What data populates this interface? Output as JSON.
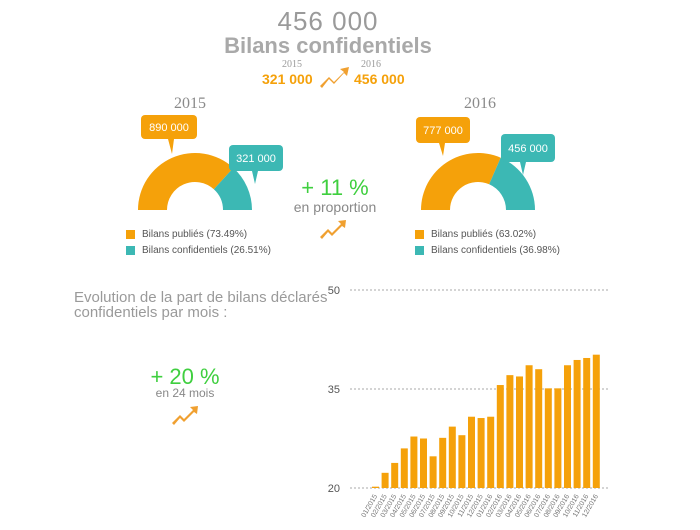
{
  "header": {
    "number": "456 000",
    "subtitle": "Bilans confidentiels",
    "year_from": "2015",
    "value_from": "321 000",
    "year_to": "2016",
    "value_to": "456 000"
  },
  "donuts": [
    {
      "year": "2015",
      "published_label": "890 000",
      "confidential_label": "321 000",
      "legend_published": "Bilans publiés (73.49%)",
      "legend_confidential": "Bilans confidentiels (26.51%)",
      "published_pct": 73.49,
      "confidential_pct": 26.51
    },
    {
      "year": "2016",
      "published_label": "777 000",
      "confidential_label": "456 000",
      "legend_published": "Bilans publiés (63.02%)",
      "legend_confidential": "Bilans confidentiels (36.98%)",
      "published_pct": 63.02,
      "confidential_pct": 36.98
    }
  ],
  "proportion": {
    "value": "+ 11 %",
    "label": "en proportion"
  },
  "evolution": {
    "text": "Evolution de la part de bilans déclarés confidentiels par mois :",
    "value": "+ 20 %",
    "label": "en 24 mois"
  },
  "colors": {
    "orange": "#f5a10a",
    "teal": "#3cb8b4",
    "green": "#3fcf3f",
    "arrow": "#f0a030"
  },
  "icons": [
    "trend-arrow-icon",
    "trend-arrow-icon",
    "trend-arrow-icon"
  ],
  "chart_data": {
    "type": "bar",
    "categories": [
      "01/2015",
      "02/2015",
      "03/2015",
      "04/2015",
      "05/2015",
      "06/2015",
      "07/2015",
      "08/2015",
      "09/2015",
      "10/2015",
      "11/2015",
      "12/2015",
      "01/2016",
      "02/2016",
      "03/2016",
      "04/2016",
      "05/2016",
      "06/2016",
      "07/2016",
      "08/2016",
      "09/2016",
      "10/2016",
      "11/2016",
      "12/2016"
    ],
    "values": [
      20.2,
      22.3,
      23.8,
      26.0,
      27.8,
      27.5,
      24.8,
      27.6,
      29.3,
      28.0,
      30.8,
      30.6,
      30.8,
      35.6,
      37.1,
      36.9,
      38.6,
      38.0,
      35.1,
      35.1,
      38.6,
      39.4,
      39.7,
      40.2
    ],
    "yticks": [
      20,
      35,
      50
    ],
    "ylim": [
      20,
      50
    ],
    "grid": true
  }
}
